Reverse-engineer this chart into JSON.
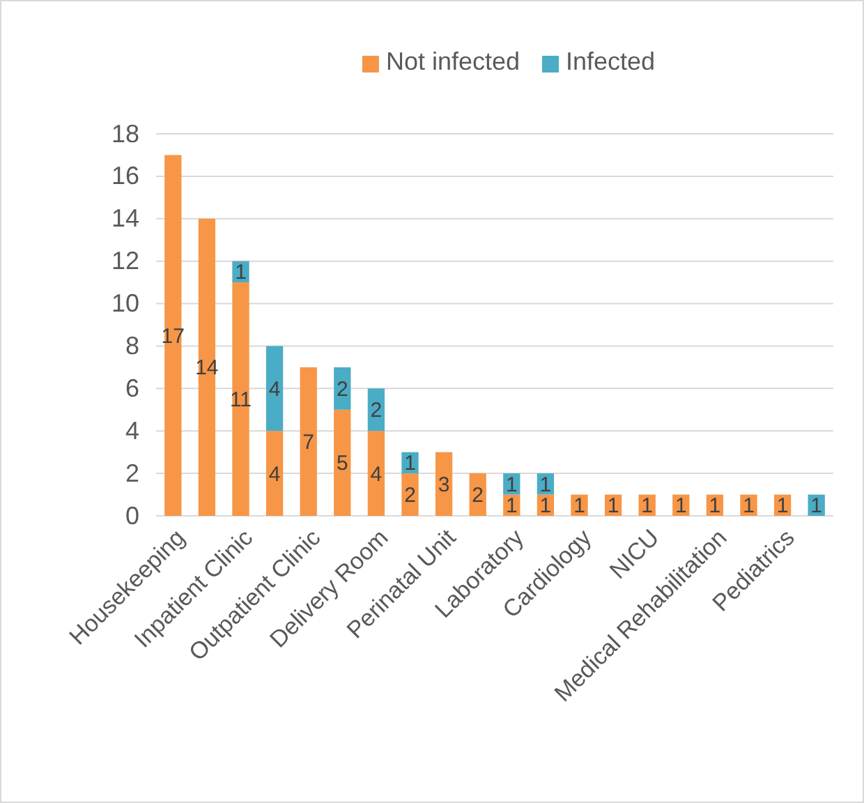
{
  "chart_data": {
    "type": "bar",
    "stacked": true,
    "categories": [
      "Housekeeping",
      null,
      "Inpatient Clinic",
      null,
      "Outpatient Clinic",
      null,
      "Delivery Room",
      null,
      "Perinatal Unit",
      null,
      "Laboratory",
      null,
      "Cardiology",
      null,
      "NICU",
      null,
      "Medical Rehabilitation",
      null,
      "Pediatrics",
      null
    ],
    "series": [
      {
        "name": "Not infected",
        "color": "#f79646",
        "values": [
          17,
          14,
          11,
          4,
          7,
          5,
          4,
          2,
          3,
          2,
          1,
          1,
          1,
          1,
          1,
          1,
          1,
          1,
          1,
          null
        ]
      },
      {
        "name": "Infected",
        "color": "#4bacc6",
        "values": [
          null,
          null,
          1,
          4,
          null,
          2,
          2,
          1,
          null,
          null,
          1,
          1,
          null,
          null,
          null,
          null,
          null,
          null,
          null,
          1
        ]
      }
    ],
    "ylim": [
      0,
      18
    ],
    "yticks": [
      0,
      2,
      4,
      6,
      8,
      10,
      12,
      14,
      16,
      18
    ],
    "grid": "y",
    "legend": "top",
    "data_labels": true
  }
}
